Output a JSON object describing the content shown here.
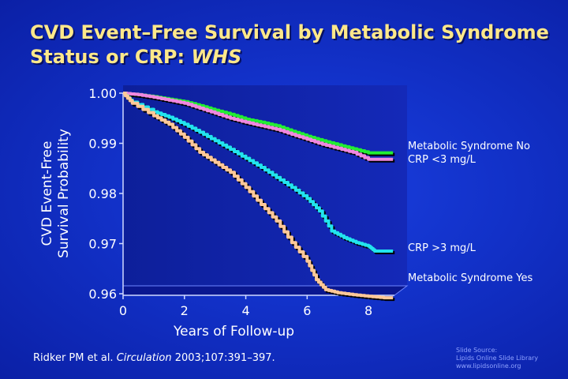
{
  "title": {
    "main": "CVD Event–Free Survival by Metabolic Syndrome Status or CRP: ",
    "italic": "WHS"
  },
  "chart_data": {
    "type": "line",
    "xlabel": "Years of Follow-up",
    "ylabel_line1": "CVD Event-Free",
    "ylabel_line2": "Survival Probability",
    "xlim": [
      0,
      9
    ],
    "ylim": [
      0.96,
      1.0
    ],
    "xticks": [
      0,
      2,
      4,
      6,
      8
    ],
    "xtick_labels": [
      "0",
      "2",
      "4",
      "6",
      "8"
    ],
    "yticks": [
      0.96,
      0.97,
      0.98,
      0.99,
      1.0
    ],
    "ytick_labels": [
      "0.96",
      "0.97",
      "0.98",
      "0.99",
      "1.00"
    ],
    "series": [
      {
        "name": "Metabolic Syndrome No",
        "color": "#22ee33",
        "x": [
          0,
          0.5,
          1,
          1.5,
          2,
          2.5,
          3,
          3.5,
          4,
          4.5,
          5,
          5.5,
          6,
          6.5,
          7,
          7.5,
          8,
          8.8
        ],
        "y": [
          1.0,
          0.9997,
          0.9993,
          0.9988,
          0.9983,
          0.9975,
          0.9966,
          0.9958,
          0.9948,
          0.9942,
          0.9935,
          0.9924,
          0.9914,
          0.9905,
          0.9897,
          0.9889,
          0.9881,
          0.9881
        ]
      },
      {
        "name": "CRP <3 mg/L",
        "color": "#f088e0",
        "x": [
          0,
          0.5,
          1,
          1.5,
          2,
          2.5,
          3,
          3.5,
          4,
          4.5,
          5,
          5.5,
          6,
          6.5,
          7,
          7.5,
          8,
          8.8
        ],
        "y": [
          1.0,
          0.9997,
          0.9992,
          0.9986,
          0.998,
          0.997,
          0.996,
          0.995,
          0.9942,
          0.9935,
          0.9928,
          0.9918,
          0.9908,
          0.9898,
          0.989,
          0.9882,
          0.9868,
          0.9868
        ]
      },
      {
        "name": "CRP >3 mg/L",
        "color": "#22e4ee",
        "x": [
          0,
          0.3,
          1,
          1.5,
          2,
          2.5,
          3,
          3.5,
          4,
          4.5,
          5,
          5.5,
          6,
          6.4,
          6.8,
          7.2,
          7.6,
          8,
          8.2,
          8.8
        ],
        "y": [
          1.0,
          0.9982,
          0.9963,
          0.9952,
          0.9938,
          0.9922,
          0.9905,
          0.9888,
          0.987,
          0.9852,
          0.9832,
          0.9812,
          0.979,
          0.9765,
          0.9725,
          0.9712,
          0.9702,
          0.9695,
          0.9685,
          0.9685
        ]
      },
      {
        "name": "Metabolic Syndrome Yes",
        "color": "#ffc898",
        "x": [
          0,
          0.3,
          1,
          1.5,
          2,
          2.5,
          3,
          3.5,
          4,
          4.5,
          5,
          5.5,
          6,
          6.3,
          6.6,
          7,
          7.5,
          8,
          8.5,
          8.8
        ],
        "y": [
          1.0,
          0.998,
          0.9955,
          0.9938,
          0.9912,
          0.9882,
          0.9862,
          0.9842,
          0.9812,
          0.9778,
          0.9745,
          0.9702,
          0.9665,
          0.9628,
          0.9608,
          0.9602,
          0.9598,
          0.9595,
          0.9592,
          0.9592
        ]
      }
    ],
    "legend_labels": {
      "ms_no": "Metabolic Syndrome No",
      "crp_low": "CRP <3 mg/L",
      "crp_high": "CRP >3 mg/L",
      "ms_yes": "Metabolic Syndrome Yes"
    }
  },
  "citation": {
    "authors": "Ridker PM et al. ",
    "journal": "Circulation",
    "details": " 2003;107:391–397."
  },
  "source": {
    "line1": "Slide Source:",
    "line2": "Lipids Online Slide Library",
    "line3": "www.lipidsonline.org"
  }
}
